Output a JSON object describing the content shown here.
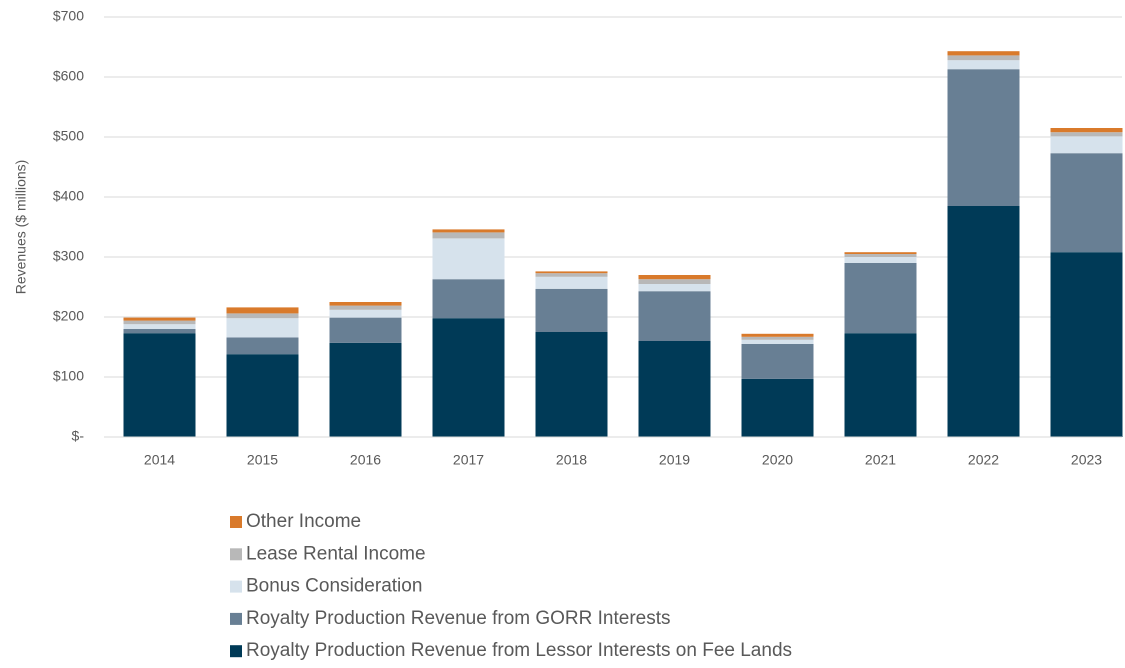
{
  "chart_data": {
    "type": "stacked_bar",
    "y_label": "Revenues ($ millions)",
    "categories": [
      "2014",
      "2015",
      "2016",
      "2017",
      "2018",
      "2019",
      "2020",
      "2021",
      "2022",
      "2023"
    ],
    "series": [
      {
        "name": "Royalty Production Revenue from Lessor Interests on Fee Lands",
        "color": "#003a57",
        "values": [
          173,
          138,
          157,
          198,
          175,
          160,
          97,
          173,
          385,
          308
        ]
      },
      {
        "name": "Royalty Production Revenue from GORR Interests",
        "color": "#687f94",
        "values": [
          7,
          28,
          42,
          65,
          72,
          83,
          58,
          117,
          228,
          165
        ]
      },
      {
        "name": "Bonus Consideration",
        "color": "#d6e2ec",
        "values": [
          8,
          32,
          13,
          68,
          20,
          12,
          7,
          10,
          15,
          28
        ]
      },
      {
        "name": "Lease Rental Income",
        "color": "#b8b8b8",
        "values": [
          6,
          8,
          7,
          10,
          6,
          8,
          5,
          5,
          8,
          7
        ]
      },
      {
        "name": "Other Income",
        "color": "#d97a2b",
        "values": [
          5,
          10,
          6,
          5,
          3,
          7,
          5,
          3,
          7,
          7
        ]
      }
    ],
    "ylim": [
      0,
      700
    ],
    "yticks": [
      {
        "value": 0,
        "label": "$-"
      },
      {
        "value": 100,
        "label": "$100"
      },
      {
        "value": 200,
        "label": "$200"
      },
      {
        "value": 300,
        "label": "$300"
      },
      {
        "value": 400,
        "label": "$400"
      },
      {
        "value": 500,
        "label": "$500"
      },
      {
        "value": 600,
        "label": "$600"
      },
      {
        "value": 700,
        "label": "$700"
      }
    ],
    "grid": true,
    "legend": "bottom"
  }
}
